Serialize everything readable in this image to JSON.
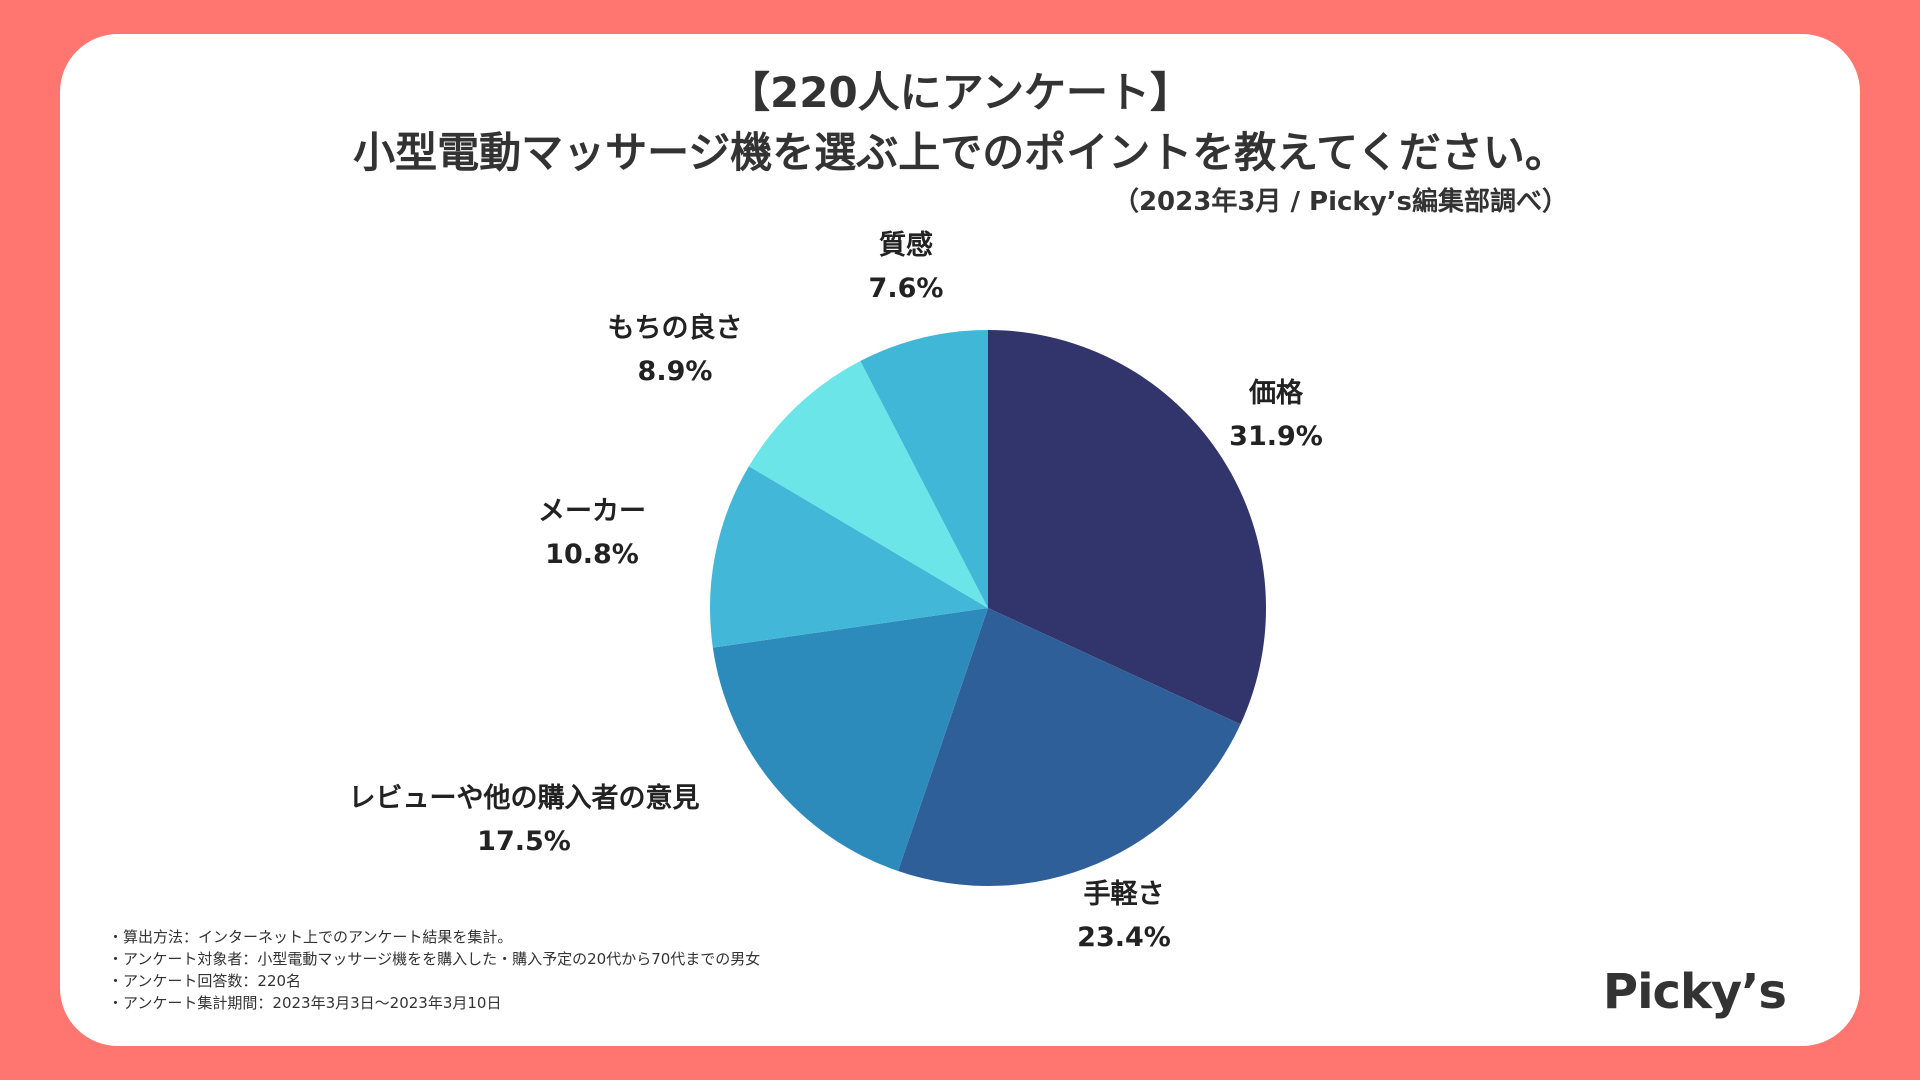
{
  "header": {
    "title_line1": "【220人にアンケート】",
    "title_line2": "小型電動マッサージ機を選ぶ上でのポイントを教えてください。",
    "source": "（2023年3月 / Picky’s編集部調べ）"
  },
  "chart_data": {
    "type": "pie",
    "title": "小型電動マッサージ機を選ぶ上でのポイントを教えてください。",
    "slices": [
      {
        "label": "価格",
        "value": 31.9,
        "value_label": "31.9%",
        "color": "#31356B"
      },
      {
        "label": "手軽さ",
        "value": 23.4,
        "value_label": "23.4%",
        "color": "#2E5F99"
      },
      {
        "label": "レビューや他の購入者の意見",
        "value": 17.5,
        "value_label": "17.5%",
        "color": "#2D8BBB"
      },
      {
        "label": "メーカー",
        "value": 10.8,
        "value_label": "10.8%",
        "color": "#42B7D7"
      },
      {
        "label": "もちの良さ",
        "value": 8.9,
        "value_label": "8.9%",
        "color": "#6CE5E8"
      },
      {
        "label": "質感",
        "value": 7.6,
        "value_label": "7.6%",
        "color": "#40B7D6"
      }
    ],
    "start": "12 o'clock",
    "direction": "clockwise"
  },
  "notes": [
    "・算出方法：インターネット上でのアンケート結果を集計。",
    "・アンケート対象者：小型電動マッサージ機をを購入した・購入予定の20代から70代までの男女",
    "・アンケート回答数：220名",
    "・アンケート集計期間：2023年3月3日〜2023年3月10日"
  ],
  "brand": {
    "logo_text": "Picky’s",
    "background_color": "#FF7570"
  }
}
